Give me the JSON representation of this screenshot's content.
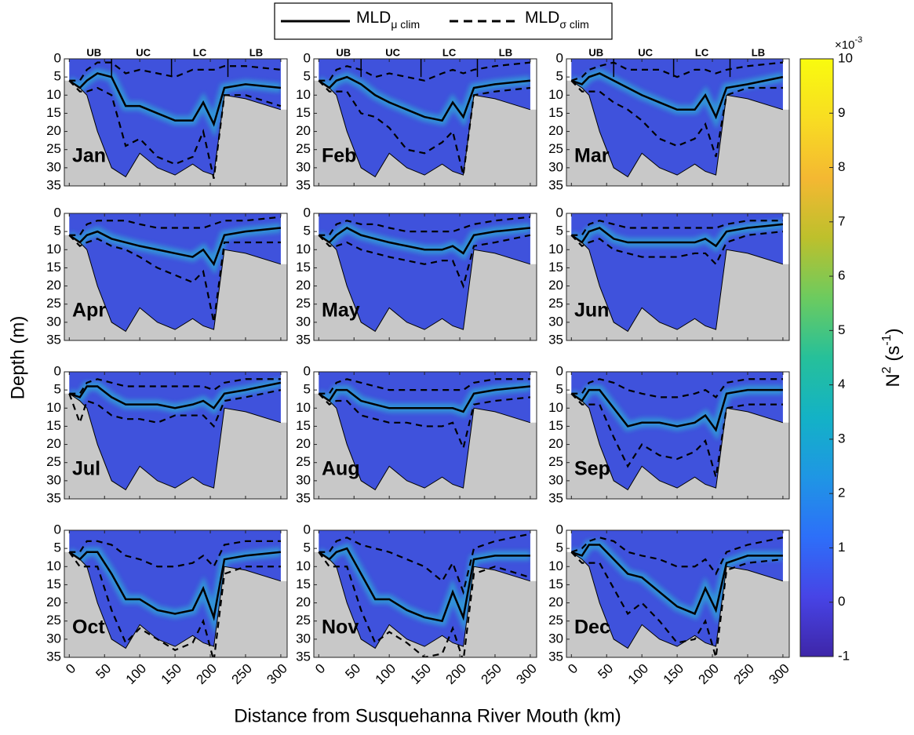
{
  "chart_data": {
    "type": "section",
    "xlabel": "Distance from Susquehanna River Mouth (km)",
    "ylabel": "Depth (m)",
    "xlim": [
      -7,
      309
    ],
    "xticks": [
      0,
      50,
      100,
      150,
      200,
      250,
      300
    ],
    "ylim": [
      0,
      35
    ],
    "yticks": [
      0,
      5,
      10,
      15,
      20,
      25,
      30,
      35
    ],
    "y_inverted": true,
    "series": [
      {
        "name": "MLD",
        "subscript": "μ clim",
        "color": "#000000",
        "dashed": false
      },
      {
        "name": "MLD",
        "subscript": "σ clim",
        "color": "#000000",
        "dashed": true
      }
    ],
    "regions": {
      "labels": [
        "UB",
        "UC",
        "LC",
        "LB"
      ],
      "label_x": [
        35,
        105,
        185,
        265
      ],
      "bounds": [
        60,
        145,
        225
      ]
    },
    "x": [
      0,
      15,
      25,
      40,
      60,
      80,
      100,
      125,
      150,
      175,
      190,
      205,
      220,
      250,
      300
    ],
    "bathymetry": [
      6,
      8,
      10,
      20,
      30,
      32.5,
      26,
      30,
      32,
      29,
      31,
      32,
      10,
      11,
      14
    ],
    "panels": [
      {
        "label": "Jan",
        "mean": [
          6,
          8,
          6,
          4,
          5,
          13,
          13,
          15,
          17,
          17,
          12,
          18,
          8,
          7,
          8
        ],
        "sigma_upper": [
          6,
          6,
          3,
          1,
          1,
          4,
          3,
          4,
          5,
          3,
          3,
          3,
          2,
          2,
          3
        ],
        "sigma_lower": [
          6,
          9,
          9,
          8,
          10,
          24,
          22,
          27,
          29,
          27,
          20,
          33,
          10,
          10,
          13
        ]
      },
      {
        "label": "Feb",
        "mean": [
          6,
          8,
          6,
          5,
          7,
          10,
          12,
          14,
          16,
          17,
          12,
          16,
          8,
          7,
          6
        ],
        "sigma_upper": [
          6,
          6,
          3,
          2,
          3,
          5,
          4,
          5,
          6,
          4,
          3,
          4,
          3,
          2,
          1
        ],
        "sigma_lower": [
          6,
          9,
          9,
          9,
          15,
          16,
          19,
          25,
          26,
          23,
          20,
          32,
          10,
          9,
          8
        ]
      },
      {
        "label": "Mar",
        "mean": [
          6,
          7,
          5,
          4,
          6,
          8,
          10,
          12,
          14,
          14,
          10,
          16,
          8,
          7,
          5
        ],
        "sigma_upper": [
          6,
          5,
          3,
          2,
          1,
          3,
          3,
          3,
          5,
          3,
          3,
          4,
          3,
          2,
          1
        ],
        "sigma_lower": [
          6,
          9,
          9,
          9,
          12,
          14,
          17,
          22,
          24,
          22,
          18,
          27,
          10,
          8,
          8
        ]
      },
      {
        "label": "Apr",
        "mean": [
          6,
          8,
          6,
          5,
          7,
          8,
          9,
          10,
          11,
          12,
          10,
          14,
          6,
          5,
          4
        ],
        "sigma_upper": [
          6,
          6,
          3,
          2,
          2,
          2,
          3,
          4,
          4,
          4,
          4,
          3,
          2,
          2,
          1
        ],
        "sigma_lower": [
          6,
          9,
          8,
          7,
          9,
          10,
          12,
          15,
          17,
          19,
          16,
          30,
          8,
          8,
          8
        ]
      },
      {
        "label": "May",
        "mean": [
          6,
          8,
          6,
          4,
          6,
          7,
          8,
          9,
          10,
          10,
          9,
          11,
          6,
          5,
          4
        ],
        "sigma_upper": [
          6,
          6,
          3,
          2,
          3,
          3,
          4,
          5,
          5,
          5,
          5,
          4,
          3,
          2,
          1
        ],
        "sigma_lower": [
          6,
          9,
          9,
          8,
          10,
          11,
          12,
          13,
          14,
          13,
          13,
          20,
          9,
          8,
          6
        ]
      },
      {
        "label": "Jun",
        "mean": [
          6,
          8,
          5,
          4,
          7,
          8,
          8,
          8,
          8,
          8,
          7,
          9,
          5,
          4,
          3
        ],
        "sigma_upper": [
          6,
          6,
          3,
          2,
          3,
          4,
          4,
          4,
          4,
          4,
          4,
          4,
          3,
          2,
          2
        ],
        "sigma_lower": [
          6,
          9,
          8,
          7,
          10,
          11,
          12,
          12,
          12,
          11,
          11,
          14,
          8,
          6,
          5
        ]
      },
      {
        "label": "Jul",
        "mean": [
          6,
          7,
          4,
          4,
          7,
          9,
          9,
          9,
          10,
          9,
          8,
          10,
          6,
          5,
          3
        ],
        "sigma_upper": [
          6,
          6,
          3,
          2,
          3,
          4,
          4,
          4,
          4,
          4,
          4,
          5,
          3,
          2,
          2
        ],
        "sigma_lower": [
          6,
          14,
          8,
          9,
          12,
          13,
          13,
          14,
          12,
          12,
          12,
          15,
          8,
          7,
          5
        ]
      },
      {
        "label": "Aug",
        "mean": [
          6,
          8,
          5,
          5,
          8,
          9,
          10,
          10,
          10,
          10,
          10,
          11,
          6,
          5,
          4
        ],
        "sigma_upper": [
          6,
          6,
          3,
          2,
          3,
          4,
          5,
          5,
          5,
          5,
          5,
          5,
          3,
          2,
          2
        ],
        "sigma_lower": [
          6,
          9,
          8,
          8,
          12,
          13,
          14,
          14,
          15,
          15,
          14,
          21,
          9,
          8,
          7
        ]
      },
      {
        "label": "Sep",
        "mean": [
          6,
          8,
          5,
          5,
          10,
          15,
          14,
          14,
          15,
          14,
          12,
          16,
          6,
          5,
          5
        ],
        "sigma_upper": [
          6,
          6,
          3,
          2,
          3,
          5,
          6,
          7,
          7,
          6,
          5,
          7,
          3,
          2,
          2
        ],
        "sigma_lower": [
          6,
          9,
          9,
          9,
          18,
          26,
          20,
          23,
          24,
          22,
          19,
          29,
          10,
          9,
          9
        ]
      },
      {
        "label": "Oct",
        "mean": [
          6,
          8,
          6,
          6,
          12,
          19,
          19,
          22,
          23,
          22,
          16,
          24,
          8,
          7,
          6
        ],
        "sigma_upper": [
          6,
          6,
          3,
          3,
          4,
          7,
          8,
          10,
          10,
          9,
          7,
          10,
          4,
          3,
          3
        ],
        "sigma_lower": [
          6,
          10,
          10,
          10,
          22,
          31,
          27,
          30,
          33,
          31,
          25,
          36,
          12,
          10,
          10
        ]
      },
      {
        "label": "Nov",
        "mean": [
          6,
          8,
          6,
          5,
          12,
          19,
          19,
          22,
          24,
          25,
          17,
          24,
          8,
          7,
          7
        ],
        "sigma_upper": [
          6,
          6,
          3,
          2,
          4,
          5,
          6,
          8,
          10,
          14,
          9,
          17,
          5,
          3,
          1
        ],
        "sigma_lower": [
          6,
          10,
          10,
          10,
          22,
          31,
          28,
          31,
          35,
          34,
          27,
          36,
          12,
          10,
          13
        ]
      },
      {
        "label": "Dec",
        "mean": [
          6,
          7,
          4,
          4,
          8,
          12,
          13,
          17,
          21,
          23,
          16,
          22,
          9,
          7,
          7
        ],
        "sigma_upper": [
          6,
          5,
          3,
          2,
          3,
          6,
          7,
          8,
          10,
          10,
          8,
          12,
          6,
          4,
          2
        ],
        "sigma_lower": [
          6,
          9,
          9,
          9,
          16,
          23,
          20,
          25,
          31,
          30,
          25,
          35,
          11,
          9,
          8
        ]
      }
    ],
    "colorbar": {
      "lim": [
        -1,
        10
      ],
      "ticks": [
        -1,
        0,
        1,
        2,
        3,
        4,
        5,
        6,
        7,
        8,
        9,
        10
      ],
      "exponent": [
        "×10",
        "-3"
      ],
      "label": [
        "N",
        "2",
        " (s",
        "-1",
        ")"
      ],
      "colormap": [
        "#3e26a8",
        "#4744e6",
        "#2d6ff9",
        "#1f96e4",
        "#13b2c6",
        "#26c09a",
        "#6ccb5f",
        "#bdc02c",
        "#f4b832",
        "#f8dd22",
        "#f9fb0e"
      ]
    },
    "land_color": "#c8c8c8",
    "water_color": "#3f52dc"
  }
}
